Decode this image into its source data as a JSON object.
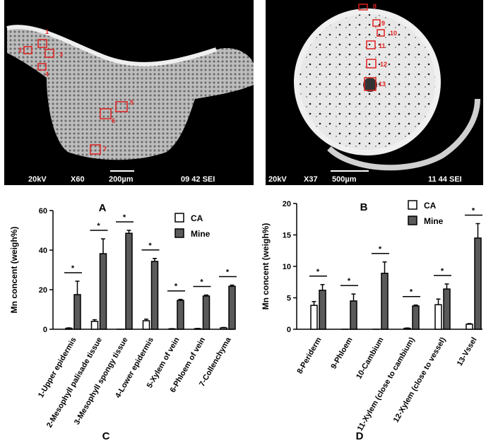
{
  "images": {
    "a": {
      "info": [
        "20kV",
        "X60",
        "200µm",
        "09 42 SEI"
      ],
      "region_labels": [
        "1",
        "2",
        "3",
        "4",
        "5",
        "6",
        "7"
      ]
    },
    "b": {
      "info": [
        "20kV",
        "X37",
        "500µm",
        "11 44 SEI"
      ],
      "region_labels": [
        "8",
        "9",
        "10",
        "11",
        "12",
        "13"
      ]
    }
  },
  "colors": {
    "ca": "#ffffff",
    "mine": "#5a5a5a",
    "axis": "#000000",
    "sem_bg": "#000000",
    "roi": "#e02020"
  },
  "chart_data": [
    {
      "type": "bar",
      "title": "A",
      "bottom_letter": "C",
      "xlabel": "",
      "ylabel": "Mn concent (weigh%)",
      "ylim": [
        0,
        60
      ],
      "yticks": [
        "0",
        "20",
        "40",
        "60"
      ],
      "categories": [
        "1-Upper epidermis",
        "2-Mesophyll palisade tissue",
        "3-Mesophyll spongy tissue",
        "4-Lower epidermis",
        "5-Xylem of vein",
        "6-Phloem of vein",
        "7-Collenchyma"
      ],
      "legend": {
        "position": "top-right"
      },
      "significance": "*",
      "series": [
        {
          "name": "CA",
          "values": [
            0.5,
            4.0,
            0.0,
            4.3,
            0.2,
            0.3,
            0.7
          ],
          "errors": [
            0.2,
            0.8,
            0.0,
            0.8,
            0.1,
            0.1,
            0.2
          ]
        },
        {
          "name": "Mine",
          "values": [
            17.5,
            38.2,
            48.5,
            34.3,
            14.6,
            16.8,
            21.7
          ],
          "errors": [
            6.8,
            7.5,
            1.5,
            1.5,
            0.5,
            0.5,
            0.6
          ]
        }
      ]
    },
    {
      "type": "bar",
      "title": "B",
      "bottom_letter": "D",
      "xlabel": "",
      "ylabel": "Mn concent (weigh%)",
      "ylim": [
        0,
        20
      ],
      "yticks": [
        "0",
        "5",
        "10",
        "15",
        "20"
      ],
      "categories": [
        "8-Periderm",
        "9-Phloem",
        "10-Cambium",
        "11-Xylem (close to cambium)",
        "12-Xylem (close to vessel)",
        "13-Vssel"
      ],
      "legend": {
        "position": "top-center"
      },
      "significance": "*",
      "series": [
        {
          "name": "CA",
          "values": [
            3.8,
            0.0,
            0.0,
            0.15,
            3.9,
            0.8
          ],
          "errors": [
            0.6,
            0.0,
            0.0,
            0.05,
            0.9,
            0.1
          ]
        },
        {
          "name": "Mine",
          "values": [
            6.2,
            4.5,
            8.9,
            3.7,
            6.4,
            14.5
          ],
          "errors": [
            0.9,
            1.1,
            1.8,
            0.15,
            0.8,
            2.3
          ]
        }
      ]
    }
  ]
}
